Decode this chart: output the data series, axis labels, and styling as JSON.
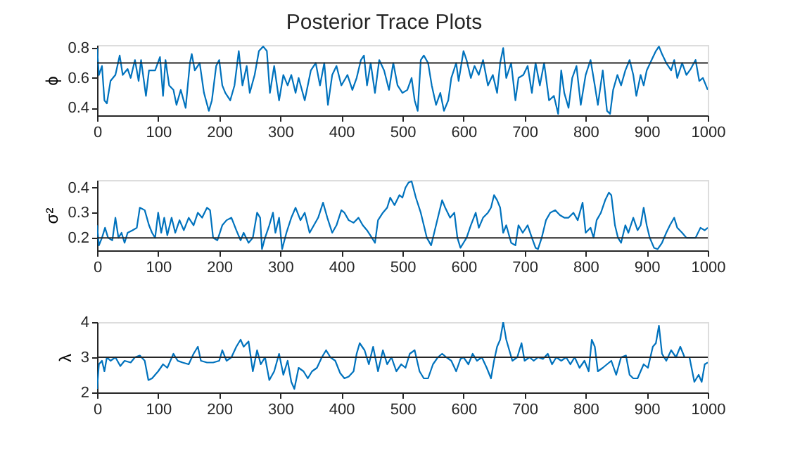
{
  "chart_data": [
    {
      "type": "line",
      "title": "Posterior Trace Plots",
      "ylabel": "ϕ",
      "xlim": [
        0,
        1000
      ],
      "xticks": [
        0,
        100,
        200,
        300,
        400,
        500,
        600,
        700,
        800,
        900,
        1000
      ],
      "ylim": [
        0.35,
        0.82
      ],
      "yticks": [
        0.4,
        0.6,
        0.8
      ],
      "x": [
        0,
        3,
        8,
        12,
        16,
        22,
        30,
        37,
        42,
        50,
        55,
        62,
        68,
        72,
        80,
        85,
        95,
        103,
        108,
        112,
        118,
        125,
        130,
        137,
        145,
        152,
        155,
        160,
        168,
        175,
        183,
        188,
        195,
        200,
        205,
        210,
        218,
        225,
        232,
        238,
        245,
        250,
        258,
        265,
        272,
        278,
        283,
        290,
        298,
        305,
        312,
        318,
        325,
        330,
        340,
        350,
        358,
        365,
        372,
        378,
        385,
        392,
        400,
        410,
        418,
        425,
        432,
        437,
        442,
        448,
        455,
        462,
        470,
        478,
        485,
        492,
        500,
        508,
        515,
        520,
        525,
        530,
        535,
        542,
        548,
        555,
        562,
        568,
        575,
        580,
        588,
        592,
        600,
        605,
        612,
        618,
        625,
        632,
        640,
        648,
        655,
        660,
        665,
        670,
        678,
        685,
        690,
        698,
        705,
        712,
        718,
        725,
        732,
        740,
        748,
        755,
        760,
        765,
        772,
        778,
        785,
        792,
        800,
        808,
        815,
        820,
        828,
        835,
        840,
        845,
        852,
        858,
        865,
        872,
        878,
        883,
        890,
        895,
        900,
        908,
        915,
        920,
        925,
        932,
        940,
        945,
        950,
        958,
        965,
        972,
        980,
        986,
        992,
        1000
      ],
      "series": [
        {
          "color": "#0072bd",
          "values": [
            0.8,
            0.62,
            0.68,
            0.45,
            0.43,
            0.58,
            0.62,
            0.75,
            0.62,
            0.66,
            0.6,
            0.72,
            0.58,
            0.72,
            0.48,
            0.65,
            0.65,
            0.74,
            0.48,
            0.72,
            0.55,
            0.52,
            0.42,
            0.52,
            0.4,
            0.7,
            0.76,
            0.65,
            0.7,
            0.5,
            0.38,
            0.45,
            0.68,
            0.72,
            0.55,
            0.5,
            0.45,
            0.55,
            0.78,
            0.55,
            0.68,
            0.5,
            0.62,
            0.78,
            0.81,
            0.78,
            0.5,
            0.68,
            0.45,
            0.62,
            0.55,
            0.62,
            0.5,
            0.6,
            0.45,
            0.65,
            0.7,
            0.55,
            0.7,
            0.42,
            0.62,
            0.68,
            0.55,
            0.62,
            0.52,
            0.6,
            0.72,
            0.75,
            0.55,
            0.7,
            0.5,
            0.72,
            0.65,
            0.52,
            0.7,
            0.55,
            0.5,
            0.52,
            0.6,
            0.45,
            0.38,
            0.72,
            0.75,
            0.7,
            0.55,
            0.42,
            0.5,
            0.38,
            0.45,
            0.6,
            0.7,
            0.58,
            0.78,
            0.72,
            0.6,
            0.68,
            0.62,
            0.72,
            0.55,
            0.62,
            0.5,
            0.7,
            0.8,
            0.6,
            0.7,
            0.45,
            0.6,
            0.62,
            0.68,
            0.5,
            0.7,
            0.55,
            0.7,
            0.45,
            0.48,
            0.36,
            0.65,
            0.5,
            0.4,
            0.6,
            0.68,
            0.42,
            0.62,
            0.72,
            0.55,
            0.42,
            0.65,
            0.38,
            0.36,
            0.52,
            0.62,
            0.55,
            0.65,
            0.72,
            0.62,
            0.48,
            0.62,
            0.55,
            0.65,
            0.72,
            0.78,
            0.81,
            0.76,
            0.7,
            0.65,
            0.72,
            0.6,
            0.7,
            0.62,
            0.66,
            0.72,
            0.58,
            0.6,
            0.52
          ]
        }
      ],
      "ref_lines": [
        {
          "axis": "y",
          "value": 0.7,
          "color": "#262626"
        }
      ]
    },
    {
      "type": "line",
      "ylabel": "σ²",
      "xlim": [
        0,
        1000
      ],
      "xticks": [
        0,
        100,
        200,
        300,
        400,
        500,
        600,
        700,
        800,
        900,
        1000
      ],
      "ylim": [
        0.15,
        0.43
      ],
      "yticks": [
        0.2,
        0.3,
        0.4
      ],
      "x": [
        0,
        3,
        8,
        13,
        18,
        25,
        30,
        35,
        40,
        45,
        50,
        58,
        65,
        70,
        78,
        85,
        90,
        95,
        100,
        105,
        110,
        115,
        122,
        128,
        135,
        142,
        150,
        158,
        165,
        172,
        180,
        185,
        190,
        197,
        205,
        212,
        220,
        228,
        235,
        240,
        248,
        255,
        262,
        267,
        270,
        275,
        282,
        288,
        292,
        298,
        303,
        310,
        318,
        325,
        333,
        340,
        348,
        355,
        362,
        370,
        377,
        385,
        392,
        400,
        405,
        412,
        420,
        428,
        435,
        442,
        450,
        455,
        460,
        468,
        475,
        480,
        487,
        495,
        500,
        505,
        510,
        515,
        522,
        530,
        535,
        540,
        547,
        552,
        558,
        565,
        570,
        578,
        585,
        590,
        595,
        600,
        605,
        612,
        620,
        625,
        632,
        640,
        645,
        650,
        655,
        660,
        665,
        670,
        678,
        685,
        690,
        697,
        705,
        712,
        718,
        722,
        728,
        735,
        742,
        750,
        758,
        765,
        772,
        780,
        787,
        795,
        800,
        808,
        813,
        818,
        825,
        832,
        838,
        842,
        848,
        853,
        858,
        865,
        870,
        878,
        885,
        890,
        895,
        900,
        905,
        912,
        918,
        925,
        932,
        938,
        945,
        950,
        958,
        965,
        972,
        980,
        988,
        995,
        1000
      ],
      "series": [
        {
          "color": "#0072bd",
          "values": [
            0.25,
            0.17,
            0.2,
            0.24,
            0.2,
            0.19,
            0.28,
            0.2,
            0.22,
            0.18,
            0.22,
            0.23,
            0.24,
            0.32,
            0.31,
            0.25,
            0.22,
            0.2,
            0.3,
            0.22,
            0.28,
            0.21,
            0.28,
            0.22,
            0.27,
            0.23,
            0.28,
            0.25,
            0.3,
            0.28,
            0.32,
            0.31,
            0.2,
            0.19,
            0.25,
            0.27,
            0.28,
            0.23,
            0.19,
            0.22,
            0.18,
            0.2,
            0.3,
            0.28,
            0.155,
            0.2,
            0.25,
            0.3,
            0.22,
            0.28,
            0.155,
            0.22,
            0.28,
            0.32,
            0.27,
            0.3,
            0.22,
            0.25,
            0.28,
            0.34,
            0.28,
            0.22,
            0.25,
            0.31,
            0.3,
            0.27,
            0.26,
            0.28,
            0.25,
            0.23,
            0.2,
            0.18,
            0.27,
            0.3,
            0.32,
            0.36,
            0.33,
            0.37,
            0.36,
            0.4,
            0.42,
            0.425,
            0.36,
            0.3,
            0.25,
            0.2,
            0.17,
            0.22,
            0.28,
            0.35,
            0.32,
            0.28,
            0.3,
            0.2,
            0.16,
            0.18,
            0.2,
            0.25,
            0.3,
            0.24,
            0.28,
            0.3,
            0.32,
            0.37,
            0.35,
            0.32,
            0.22,
            0.25,
            0.18,
            0.17,
            0.25,
            0.22,
            0.25,
            0.2,
            0.16,
            0.155,
            0.2,
            0.27,
            0.3,
            0.31,
            0.29,
            0.28,
            0.28,
            0.3,
            0.27,
            0.34,
            0.22,
            0.24,
            0.2,
            0.27,
            0.3,
            0.35,
            0.38,
            0.37,
            0.25,
            0.2,
            0.18,
            0.25,
            0.22,
            0.28,
            0.23,
            0.25,
            0.32,
            0.25,
            0.2,
            0.16,
            0.155,
            0.18,
            0.22,
            0.25,
            0.28,
            0.24,
            0.22,
            0.2,
            0.2,
            0.2,
            0.24,
            0.23,
            0.24
          ]
        }
      ],
      "ref_lines": [
        {
          "axis": "y",
          "value": 0.2,
          "color": "#262626"
        }
      ]
    },
    {
      "type": "line",
      "ylabel": "λ",
      "xlim": [
        0,
        1000
      ],
      "xticks": [
        0,
        100,
        200,
        300,
        400,
        500,
        600,
        700,
        800,
        900,
        1000
      ],
      "ylim": [
        2,
        4
      ],
      "yticks": [
        2,
        3,
        4
      ],
      "x": [
        0,
        3,
        8,
        12,
        16,
        22,
        30,
        38,
        45,
        55,
        62,
        70,
        78,
        84,
        90,
        100,
        108,
        115,
        125,
        132,
        140,
        150,
        158,
        165,
        170,
        180,
        190,
        200,
        205,
        212,
        220,
        228,
        235,
        240,
        248,
        255,
        262,
        268,
        275,
        282,
        290,
        298,
        305,
        312,
        318,
        323,
        330,
        338,
        345,
        352,
        360,
        368,
        375,
        382,
        390,
        398,
        405,
        412,
        420,
        425,
        430,
        438,
        445,
        452,
        460,
        468,
        475,
        482,
        490,
        498,
        505,
        512,
        520,
        528,
        535,
        542,
        550,
        558,
        565,
        572,
        580,
        588,
        595,
        600,
        608,
        615,
        622,
        630,
        638,
        645,
        650,
        655,
        660,
        665,
        670,
        675,
        680,
        688,
        695,
        700,
        708,
        715,
        722,
        730,
        738,
        745,
        752,
        760,
        768,
        775,
        782,
        790,
        798,
        805,
        810,
        815,
        820,
        828,
        835,
        842,
        850,
        858,
        866,
        872,
        878,
        885,
        890,
        895,
        902,
        910,
        915,
        920,
        925,
        932,
        940,
        948,
        955,
        962,
        970,
        978,
        985,
        990,
        995,
        1000
      ],
      "series": [
        {
          "color": "#0072bd",
          "values": [
            2.1,
            2.8,
            2.9,
            2.6,
            3.0,
            2.9,
            3.0,
            2.75,
            2.9,
            2.85,
            3.0,
            3.05,
            2.9,
            2.35,
            2.4,
            2.6,
            2.8,
            2.7,
            3.1,
            2.9,
            2.85,
            2.8,
            3.1,
            3.3,
            2.9,
            2.85,
            2.85,
            2.9,
            3.2,
            2.9,
            3.0,
            3.3,
            3.5,
            3.3,
            3.45,
            2.6,
            3.2,
            2.8,
            3.0,
            2.35,
            2.6,
            3.1,
            2.5,
            2.9,
            2.3,
            2.1,
            2.7,
            2.6,
            2.4,
            2.6,
            2.7,
            3.0,
            3.2,
            3.0,
            2.9,
            2.55,
            2.4,
            2.45,
            2.6,
            3.1,
            3.4,
            3.2,
            2.8,
            3.3,
            2.6,
            3.2,
            2.8,
            3.0,
            2.6,
            2.8,
            2.7,
            3.1,
            3.2,
            2.6,
            2.4,
            2.4,
            2.8,
            3.0,
            3.1,
            3.0,
            2.9,
            2.6,
            2.95,
            3.0,
            2.8,
            3.1,
            2.9,
            3.0,
            2.7,
            2.4,
            2.9,
            3.3,
            3.5,
            4.0,
            3.5,
            3.2,
            2.9,
            3.0,
            3.4,
            2.9,
            3.0,
            2.9,
            3.0,
            2.95,
            3.1,
            2.8,
            3.0,
            2.9,
            3.0,
            2.8,
            3.0,
            2.7,
            2.9,
            2.6,
            3.5,
            3.3,
            2.6,
            2.7,
            2.8,
            2.9,
            2.5,
            3.0,
            3.05,
            2.5,
            2.4,
            2.4,
            2.6,
            2.8,
            2.7,
            3.3,
            3.4,
            3.9,
            3.1,
            2.9,
            3.2,
            3.0,
            3.3,
            3.0,
            3.0,
            2.3,
            2.5,
            2.3,
            2.8,
            2.85
          ]
        }
      ],
      "ref_lines": [
        {
          "axis": "y",
          "value": 3,
          "color": "#262626"
        }
      ]
    }
  ]
}
